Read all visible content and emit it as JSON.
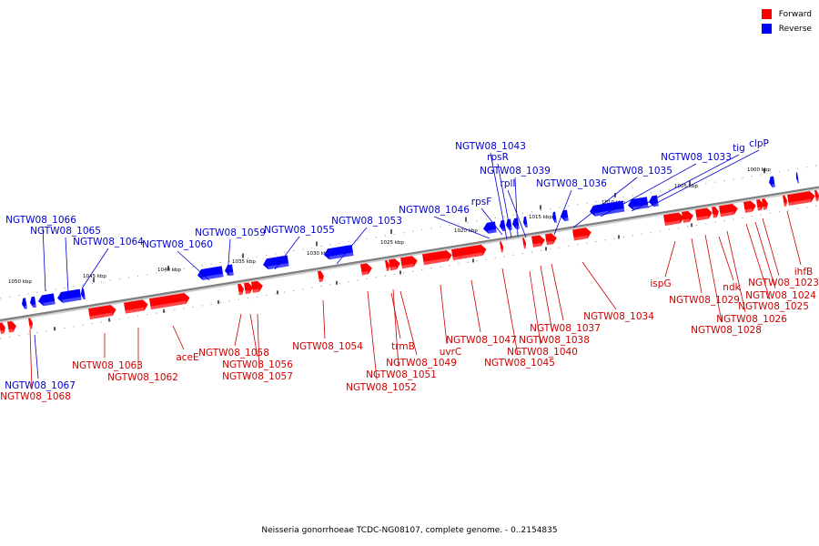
{
  "colors": {
    "forward": "#ff0000",
    "forward_label": "#cc0000",
    "reverse": "#0000ff",
    "reverse_label": "#0000cc",
    "backbone": "#7f7f7f"
  },
  "legend": {
    "forward_label": "Forward",
    "reverse_label": "Reverse"
  },
  "caption": "Neisseria gonorrhoeae TCDC-NG08107, complete genome. - 0..2154835",
  "scale_labels": [
    "1050 kbp",
    "1045 kbp",
    "1040 kbp",
    "1035 kbp",
    "1030 kbp",
    "1025 kbp",
    "1020 kbp",
    "1015 kbp",
    "1010 kbp",
    "1005 kbp",
    "1000 kbp"
  ],
  "genes_reverse": [
    {
      "label": "NGTW08_1066"
    },
    {
      "label": "NGTW08_1065"
    },
    {
      "label": "NGTW08_1064"
    },
    {
      "label": "NGTW08_1060"
    },
    {
      "label": "NGTW08_1059"
    },
    {
      "label": "NGTW08_1055"
    },
    {
      "label": "NGTW08_1053"
    },
    {
      "label": "NGTW08_1046"
    },
    {
      "label": "rpsF"
    },
    {
      "label": "NGTW08_1043"
    },
    {
      "label": "rpsR"
    },
    {
      "label": "NGTW08_1039"
    },
    {
      "label": "rplI"
    },
    {
      "label": "NGTW08_1036"
    },
    {
      "label": "NGTW08_1035"
    },
    {
      "label": "NGTW08_1033"
    },
    {
      "label": "tig"
    },
    {
      "label": "clpP"
    },
    {
      "label": "NGTW08_1067"
    },
    {
      "label": "NGTW08_1068"
    }
  ],
  "genes_forward": [
    {
      "label": "NGTW08_1063"
    },
    {
      "label": "NGTW08_1062"
    },
    {
      "label": "aceE"
    },
    {
      "label": "NGTW08_1058"
    },
    {
      "label": "NGTW08_1056"
    },
    {
      "label": "NGTW08_1057"
    },
    {
      "label": "NGTW08_1054"
    },
    {
      "label": "trmB"
    },
    {
      "label": "NGTW08_1049"
    },
    {
      "label": "NGTW08_1051"
    },
    {
      "label": "NGTW08_1052"
    },
    {
      "label": "uvrC"
    },
    {
      "label": "NGTW08_1047"
    },
    {
      "label": "NGTW08_1045"
    },
    {
      "label": "NGTW08_1040"
    },
    {
      "label": "NGTW08_1038"
    },
    {
      "label": "NGTW08_1037"
    },
    {
      "label": "NGTW08_1034"
    },
    {
      "label": "ispG"
    },
    {
      "label": "NGTW08_1029"
    },
    {
      "label": "NGTW08_1028"
    },
    {
      "label": "ndk"
    },
    {
      "label": "NGTW08_1026"
    },
    {
      "label": "NGTW08_1025"
    },
    {
      "label": "NGTW08_1024"
    },
    {
      "label": "NGTW08_1023"
    },
    {
      "label": "ihfB"
    }
  ]
}
